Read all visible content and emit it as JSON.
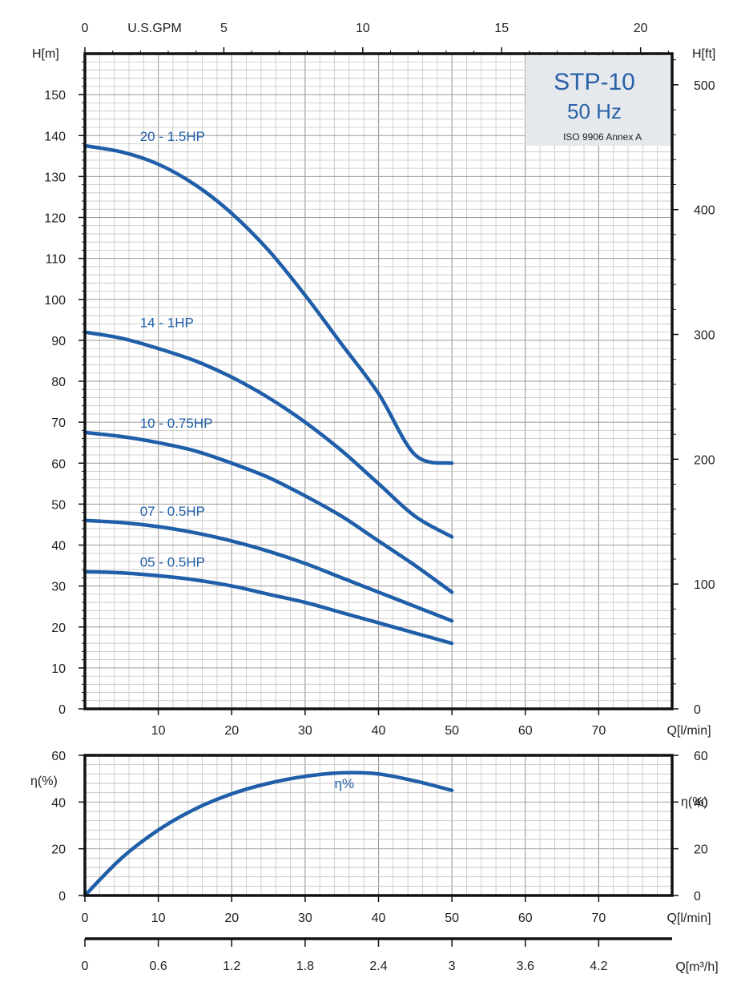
{
  "chart_data": [
    {
      "type": "line",
      "title": "STP-10",
      "subtitle": "50 Hz",
      "note": "ISO 9906 Annex A",
      "ylabel": "H[m]",
      "ylabel_right": "H[ft]",
      "xlabel": "Q[l/min]",
      "xlabel_top": "U.S.GPM",
      "xlim": [
        0,
        80
      ],
      "ylim": [
        0,
        160
      ],
      "xticks": [
        10,
        20,
        30,
        40,
        50,
        60,
        70
      ],
      "yticks": [
        0,
        10,
        20,
        30,
        40,
        50,
        60,
        70,
        80,
        90,
        100,
        110,
        120,
        130,
        140,
        150
      ],
      "top_ticks": [
        "0",
        "5",
        "10",
        "15",
        "20"
      ],
      "right_ticks": [
        "0",
        "100",
        "200",
        "300",
        "400",
        "500"
      ],
      "series": [
        {
          "name": "20 - 1.5HP",
          "x": [
            0,
            5,
            10,
            15,
            20,
            25,
            30,
            35,
            40,
            45,
            50
          ],
          "y": [
            137.5,
            136,
            133,
            128,
            121,
            112,
            101,
            89,
            77,
            62,
            60
          ]
        },
        {
          "name": "14 - 1HP",
          "x": [
            0,
            5,
            10,
            15,
            20,
            25,
            30,
            35,
            40,
            45,
            50
          ],
          "y": [
            92,
            90.5,
            88,
            85,
            81,
            76,
            70,
            63,
            55,
            47,
            42
          ]
        },
        {
          "name": "10 - 0.75HP",
          "x": [
            0,
            5,
            10,
            15,
            20,
            25,
            30,
            35,
            40,
            45,
            50
          ],
          "y": [
            67.5,
            66.5,
            65,
            63,
            60,
            56.5,
            52,
            47,
            41,
            35,
            28.5
          ]
        },
        {
          "name": "07 - 0.5HP",
          "x": [
            0,
            5,
            10,
            15,
            20,
            25,
            30,
            35,
            40,
            45,
            50
          ],
          "y": [
            46,
            45.5,
            44.5,
            43,
            41,
            38.5,
            35.5,
            32,
            28.5,
            25,
            21.5
          ]
        },
        {
          "name": "05 - 0.5HP",
          "x": [
            0,
            5,
            10,
            15,
            20,
            25,
            30,
            35,
            40,
            45,
            50
          ],
          "y": [
            33.5,
            33.2,
            32.5,
            31.5,
            30,
            28,
            26,
            23.5,
            21,
            18.5,
            16
          ]
        }
      ]
    },
    {
      "type": "line",
      "ylabel": "η(%)",
      "ylabel_right": "η(%)",
      "xlabel": "Q[l/min]",
      "xlim": [
        0,
        80
      ],
      "ylim": [
        0,
        60
      ],
      "xticks": [
        "0",
        "10",
        "20",
        "30",
        "40",
        "50",
        "60",
        "70"
      ],
      "yticks": [
        "0",
        "20",
        "40",
        "60"
      ],
      "secondary_xlabel": "Q[m³/h]",
      "secondary_xticks": [
        "0",
        "0.6",
        "1.2",
        "1.8",
        "2.4",
        "3",
        "3.6",
        "4.2"
      ],
      "series": [
        {
          "name": "η%",
          "x": [
            0,
            5,
            10,
            15,
            20,
            25,
            30,
            35,
            40,
            45,
            50
          ],
          "y": [
            0,
            16,
            28,
            37,
            43.5,
            48,
            51,
            52.5,
            52,
            49,
            45
          ]
        }
      ]
    }
  ],
  "colors": {
    "curve": "#1f5ea8",
    "grid": "#c4c4c4",
    "frame": "#111111",
    "title_box": "#e5e8ed"
  }
}
